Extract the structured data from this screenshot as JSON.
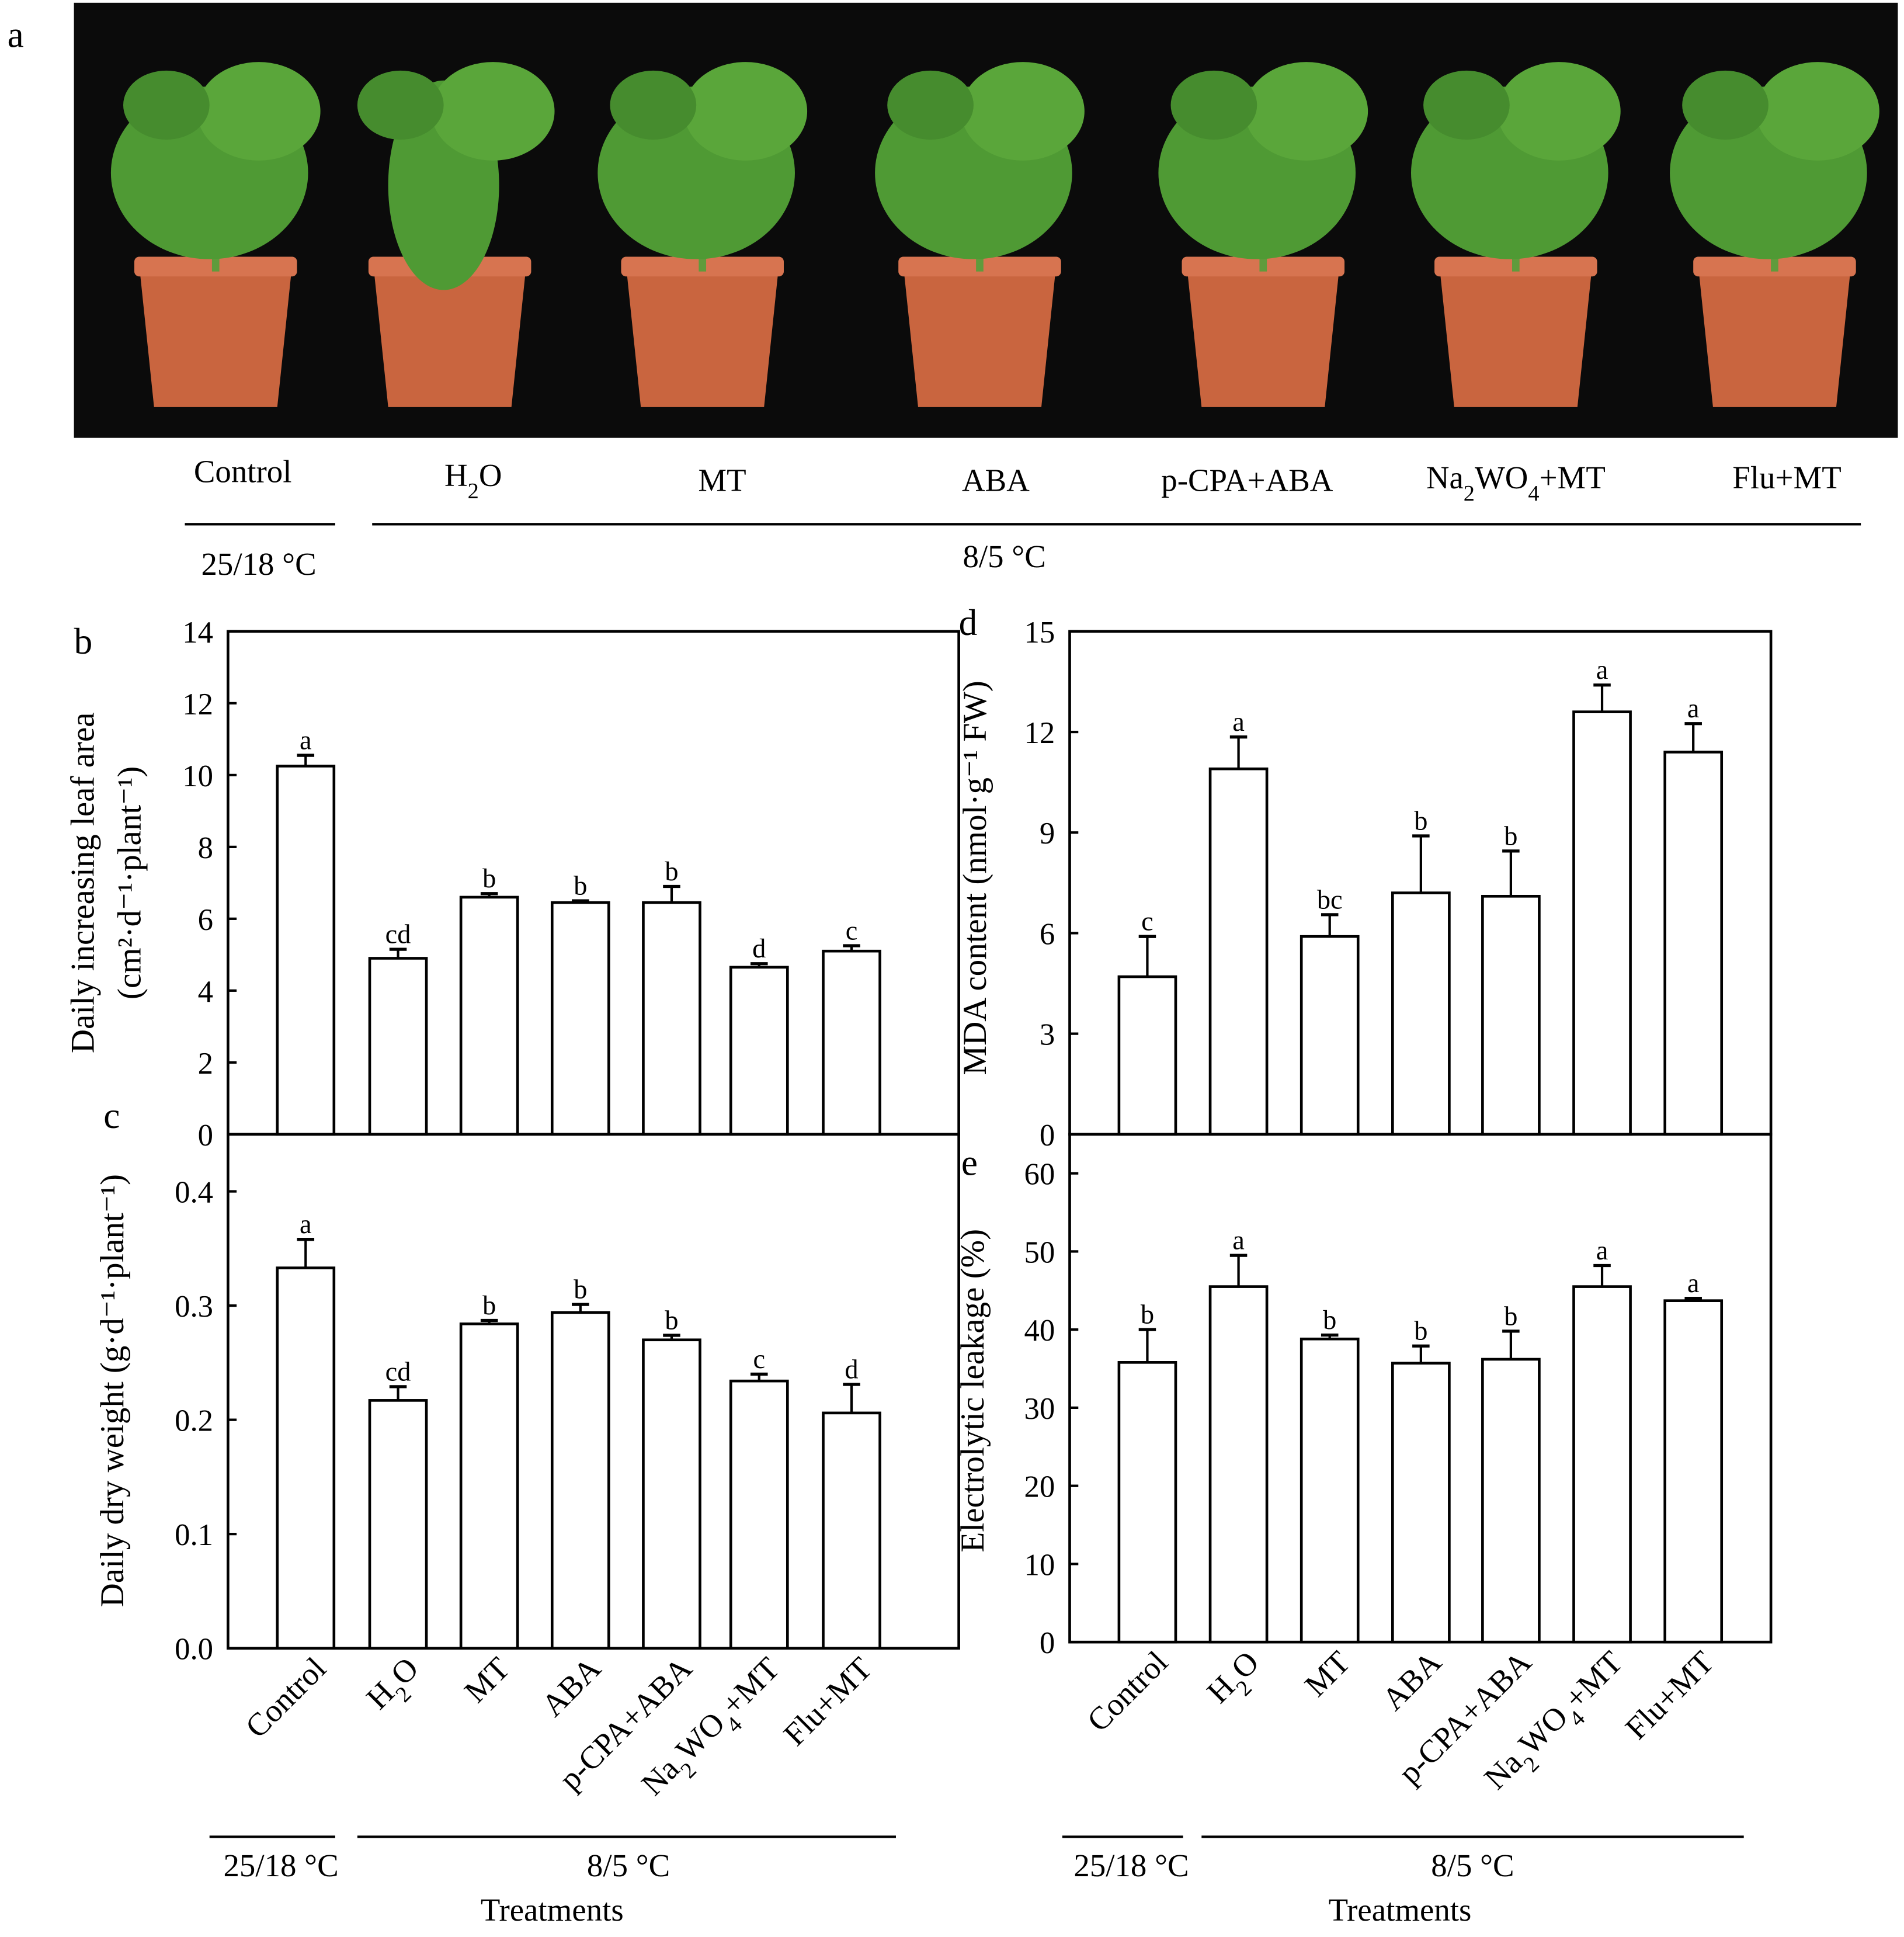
{
  "figure": {
    "panel_a": {
      "letter": "a",
      "treatments": [
        "Control",
        "H2O",
        "MT",
        "ABA",
        "p-CPA+ABA",
        "Na2WO4+MT",
        "Flu+MT"
      ],
      "temp_control": "25/18 °C",
      "temp_cold": "8/5 °C",
      "photo_colors": {
        "background": "#0b0b0b",
        "pot": "#c9653f",
        "leaf": "#4f9a34"
      }
    },
    "treatments_label": "Treatments",
    "temp_control": "25/18 °C",
    "temp_cold": "8/5 °C"
  },
  "chart_data": [
    {
      "panel": "b",
      "type": "bar",
      "categories": [
        "Control",
        "H2O",
        "MT",
        "ABA",
        "p-CPA+ABA",
        "Na2WO4+MT",
        "Flu+MT"
      ],
      "values": [
        10.25,
        4.9,
        6.6,
        6.45,
        6.45,
        4.65,
        5.1
      ],
      "errors": [
        0.3,
        0.25,
        0.1,
        0.05,
        0.45,
        0.1,
        0.15
      ],
      "letters": [
        "a",
        "cd",
        "b",
        "b",
        "b",
        "d",
        "c"
      ],
      "ylabel_line1": "Daily increasing leaf area",
      "ylabel_line2": "(cm²·d⁻¹·plant⁻¹)",
      "ylim": [
        0,
        14
      ],
      "yticks": [
        "0",
        "2",
        "4",
        "6",
        "8",
        "10",
        "12",
        "14"
      ],
      "grid": false
    },
    {
      "panel": "c",
      "type": "bar",
      "categories": [
        "Control",
        "H2O",
        "MT",
        "ABA",
        "p-CPA+ABA",
        "Na2WO4+MT",
        "Flu+MT"
      ],
      "values": [
        0.333,
        0.217,
        0.284,
        0.294,
        0.27,
        0.234,
        0.206
      ],
      "errors": [
        0.025,
        0.012,
        0.003,
        0.007,
        0.004,
        0.006,
        0.025
      ],
      "letters": [
        "a",
        "cd",
        "b",
        "b",
        "b",
        "c",
        "d"
      ],
      "ylabel_line1": "Daily dry weight (g·d⁻¹·plant⁻¹)",
      "ylim": [
        0,
        0.45
      ],
      "yticks": [
        "0.0",
        "0.1",
        "0.2",
        "0.3",
        "0.4"
      ],
      "xlabel": "Treatments",
      "grid": false
    },
    {
      "panel": "d",
      "type": "bar",
      "categories": [
        "Control",
        "H2O",
        "MT",
        "ABA",
        "p-CPA+ABA",
        "Na2WO4+MT",
        "Flu+MT"
      ],
      "values": [
        4.7,
        10.9,
        5.9,
        7.2,
        7.1,
        12.6,
        11.4
      ],
      "errors": [
        1.2,
        0.95,
        0.65,
        1.7,
        1.35,
        0.8,
        0.85
      ],
      "letters": [
        "c",
        "a",
        "bc",
        "b",
        "b",
        "a",
        "a"
      ],
      "ylabel_line1": "MDA content (nmol·g⁻¹ FW)",
      "ylim": [
        0,
        15
      ],
      "yticks": [
        "0",
        "3",
        "6",
        "9",
        "12",
        "15"
      ],
      "grid": false
    },
    {
      "panel": "e",
      "type": "bar",
      "categories": [
        "Control",
        "H2O",
        "MT",
        "ABA",
        "p-CPA+ABA",
        "Na2WO4+MT",
        "Flu+MT"
      ],
      "values": [
        35.8,
        45.5,
        38.8,
        35.7,
        36.2,
        45.5,
        43.7
      ],
      "errors": [
        4.2,
        4.0,
        0.5,
        2.2,
        3.6,
        2.7,
        0.3
      ],
      "letters": [
        "b",
        "a",
        "b",
        "b",
        "b",
        "a",
        "a"
      ],
      "ylabel_line1": "Electrolytic leakage (%)",
      "ylim": [
        0,
        65
      ],
      "yticks": [
        "0",
        "10",
        "20",
        "30",
        "40",
        "50",
        "60"
      ],
      "xlabel": "Treatments",
      "grid": false
    }
  ]
}
